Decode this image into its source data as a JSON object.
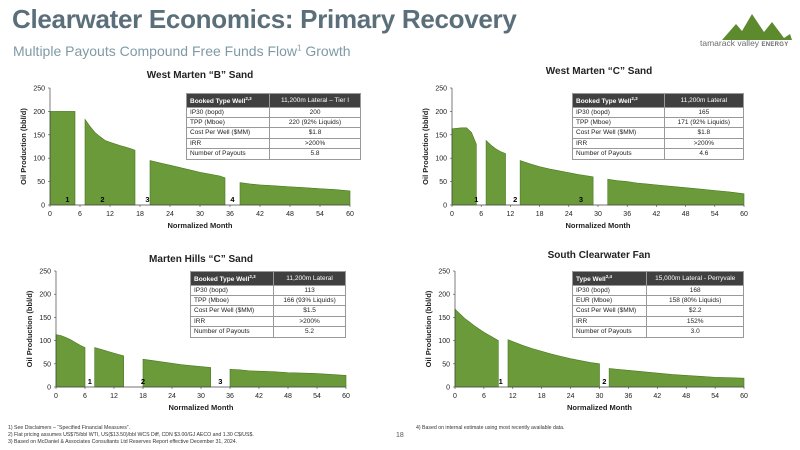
{
  "header": {
    "title": "Clearwater Economics: Primary Recovery",
    "subtitle": "Multiple Payouts Compound Free Funds Flow",
    "subtitle_sup": "1",
    "subtitle_tail": " Growth"
  },
  "logo": {
    "name": "tamarack valley",
    "suffix": "ENERGY",
    "color": "#5e8a2e"
  },
  "colors": {
    "fill": "#6a9a3a",
    "stroke": "#4a7a1e"
  },
  "charts": [
    {
      "title": "West Marten “B” Sand",
      "xlabel": "Normalized Month",
      "ylabel": "Oil Production (bbl/d)",
      "table": {
        "header": "Booked Type Well",
        "header_sup": "2,3",
        "header_value": "11,200m Lateral – Tier I",
        "rows": [
          {
            "label": "IP30 (bopd)",
            "value": "200"
          },
          {
            "label": "TPP (Mboe)",
            "value": "220 (92% Liquids)"
          },
          {
            "label": "Cost Per Well ($MM)",
            "value": "$1.8"
          },
          {
            "label": "IRR",
            "value": ">200%"
          },
          {
            "label": "Number of Payouts",
            "value": "5.8"
          }
        ]
      }
    },
    {
      "title": "West Marten “C” Sand",
      "xlabel": "Normalized Month",
      "ylabel": "Oil Production (bbl/d)",
      "table": {
        "header": "Booked Type Well",
        "header_sup": "2,3",
        "header_value": "11,200m Lateral",
        "rows": [
          {
            "label": "IP30 (bopd)",
            "value": "165"
          },
          {
            "label": "TPP (Mboe)",
            "value": "171 (92% Liquids)"
          },
          {
            "label": "Cost Per Well ($MM)",
            "value": "$1.8"
          },
          {
            "label": "IRR",
            "value": ">200%"
          },
          {
            "label": "Number of Payouts",
            "value": "4.6"
          }
        ]
      }
    },
    {
      "title": "Marten Hills “C” Sand",
      "xlabel": "Normalized Month",
      "ylabel": "Oil Production (bbl/d)",
      "table": {
        "header": "Booked Type Well",
        "header_sup": "2,3",
        "header_value": "11,200m Lateral",
        "rows": [
          {
            "label": "IP30 (bopd)",
            "value": "113"
          },
          {
            "label": "TPP (Mboe)",
            "value": "166 (93% Liquids)"
          },
          {
            "label": "Cost Per Well ($MM)",
            "value": "$1.5"
          },
          {
            "label": "IRR",
            "value": ">200%"
          },
          {
            "label": "Number of Payouts",
            "value": "5.2"
          }
        ]
      }
    },
    {
      "title": "South Clearwater Fan",
      "xlabel": "Normalized Month",
      "ylabel": "Oil Production (bbl/d)",
      "table": {
        "header": "Type Well",
        "header_sup": "2,4",
        "header_value": "15,000m Lateral - Perryvale",
        "rows": [
          {
            "label": "IP30 (bopd)",
            "value": "168"
          },
          {
            "label": "EUR (Mboe)",
            "value": "158 (80% Liquids)"
          },
          {
            "label": "Cost Per Well ($MM)",
            "value": "$2.2"
          },
          {
            "label": "IRR",
            "value": "152%"
          },
          {
            "label": "Number of Payouts",
            "value": "3.0"
          }
        ]
      }
    }
  ],
  "chart_data": [
    {
      "type": "area",
      "title": "West Marten “B” Sand",
      "xlabel": "Normalized Month",
      "ylabel": "Oil Production (bbl/d)",
      "xlim": [
        0,
        60
      ],
      "ylim": [
        0,
        250
      ],
      "xticks": [
        0,
        6,
        12,
        18,
        24,
        30,
        36,
        42,
        48,
        54,
        60
      ],
      "yticks": [
        0,
        50,
        100,
        150,
        200,
        250
      ],
      "x": [
        0,
        2,
        4,
        5,
        6,
        7,
        8,
        9,
        10,
        11,
        12,
        14,
        16,
        17,
        18,
        20,
        22,
        24,
        26,
        28,
        30,
        32,
        34,
        35,
        36,
        38,
        40,
        42,
        45,
        48,
        51,
        54,
        57,
        60
      ],
      "y": [
        200,
        200,
        200,
        200,
        null,
        183,
        168,
        155,
        146,
        138,
        134,
        127,
        121,
        117,
        null,
        95,
        90,
        85,
        80,
        75,
        70,
        66,
        62,
        58,
        null,
        48,
        45,
        43,
        41,
        39,
        37,
        35,
        33,
        30
      ],
      "payouts": [
        {
          "label": "1",
          "x": 3.5
        },
        {
          "label": "2",
          "x": 10.5
        },
        {
          "label": "3",
          "x": 19.5
        },
        {
          "label": "4",
          "x": 36.5
        }
      ],
      "grid": false
    },
    {
      "type": "area",
      "title": "West Marten “C” Sand",
      "xlabel": "Normalized Month",
      "ylabel": "Oil Production (bbl/d)",
      "xlim": [
        0,
        60
      ],
      "ylim": [
        0,
        250
      ],
      "xticks": [
        0,
        6,
        12,
        18,
        24,
        30,
        36,
        42,
        48,
        54,
        60
      ],
      "yticks": [
        0,
        50,
        100,
        150,
        200,
        250
      ],
      "x": [
        0,
        2,
        3,
        4,
        5,
        6,
        7,
        8,
        9,
        10,
        11,
        12,
        14,
        16,
        18,
        20,
        22,
        24,
        26,
        28,
        29,
        30,
        32,
        34,
        36,
        38,
        40,
        42,
        45,
        48,
        51,
        54,
        57,
        60
      ],
      "y": [
        163,
        165,
        165,
        155,
        130,
        null,
        138,
        128,
        120,
        114,
        110,
        null,
        95,
        88,
        82,
        77,
        73,
        69,
        65,
        62,
        60,
        null,
        55,
        52,
        50,
        47,
        45,
        43,
        40,
        37,
        34,
        31,
        28,
        24
      ],
      "payouts": [
        {
          "label": "1",
          "x": 5
        },
        {
          "label": "2",
          "x": 13
        },
        {
          "label": "3",
          "x": 26.5
        }
      ],
      "grid": false
    },
    {
      "type": "area",
      "title": "Marten Hills “C” Sand",
      "xlabel": "Normalized Month",
      "ylabel": "Oil Production (bbl/d)",
      "xlim": [
        0,
        60
      ],
      "ylim": [
        0,
        250
      ],
      "xticks": [
        0,
        6,
        12,
        18,
        24,
        30,
        36,
        42,
        48,
        54,
        60
      ],
      "yticks": [
        0,
        50,
        100,
        150,
        200,
        250
      ],
      "x": [
        0,
        1,
        2,
        3,
        4,
        5,
        6,
        7,
        8,
        9,
        10,
        11,
        12,
        13,
        14,
        16,
        18,
        20,
        22,
        24,
        26,
        28,
        30,
        32,
        34,
        36,
        38,
        40,
        42,
        45,
        48,
        51,
        54,
        57,
        60
      ],
      "y": [
        113,
        111,
        107,
        102,
        96,
        90,
        85,
        null,
        85,
        82,
        79,
        76,
        73,
        70,
        67,
        null,
        60,
        57,
        54,
        51,
        48,
        46,
        44,
        42,
        null,
        38,
        37,
        35,
        34,
        33,
        31,
        30,
        29,
        27,
        25
      ],
      "payouts": [
        {
          "label": "1",
          "x": 7
        },
        {
          "label": "2",
          "x": 18
        },
        {
          "label": "3",
          "x": 34
        }
      ],
      "grid": false
    },
    {
      "type": "area",
      "title": "South Clearwater Fan",
      "xlabel": "Normalized Month",
      "ylabel": "Oil Production (bbl/d)",
      "xlim": [
        0,
        60
      ],
      "ylim": [
        0,
        250
      ],
      "xticks": [
        0,
        6,
        12,
        18,
        24,
        30,
        36,
        42,
        48,
        54,
        60
      ],
      "yticks": [
        0,
        50,
        100,
        150,
        200,
        250
      ],
      "x": [
        0,
        1,
        2,
        3,
        4,
        5,
        6,
        7,
        8,
        9,
        10,
        11,
        12,
        14,
        16,
        18,
        20,
        22,
        24,
        26,
        28,
        30,
        31,
        32,
        34,
        36,
        38,
        40,
        42,
        45,
        48,
        51,
        54,
        57,
        60
      ],
      "y": [
        168,
        158,
        148,
        140,
        132,
        125,
        118,
        112,
        106,
        100,
        null,
        102,
        98,
        90,
        83,
        77,
        71,
        66,
        61,
        57,
        53,
        50,
        null,
        40,
        38,
        36,
        34,
        32,
        30,
        27,
        25,
        23,
        21,
        20,
        19
      ],
      "payouts": [
        {
          "label": "1",
          "x": 9.5
        },
        {
          "label": "2",
          "x": 31
        }
      ],
      "grid": false
    }
  ],
  "footnotes": {
    "left": [
      "1)  See Disclaimers – “Specified Financial Measures”.",
      "2)  Flat pricing assumes US$75/bbl WTI, US($13.50)/bbl WCS Diff, CDN $3.00/GJ AECO and 1.30 C$/US$.",
      "3)  Based on McDaniel & Associates Consultants Ltd Reserves Report effective December 31, 2024."
    ],
    "right": "4)  Based on internal estimate using most recently available data."
  },
  "page_number": "18"
}
